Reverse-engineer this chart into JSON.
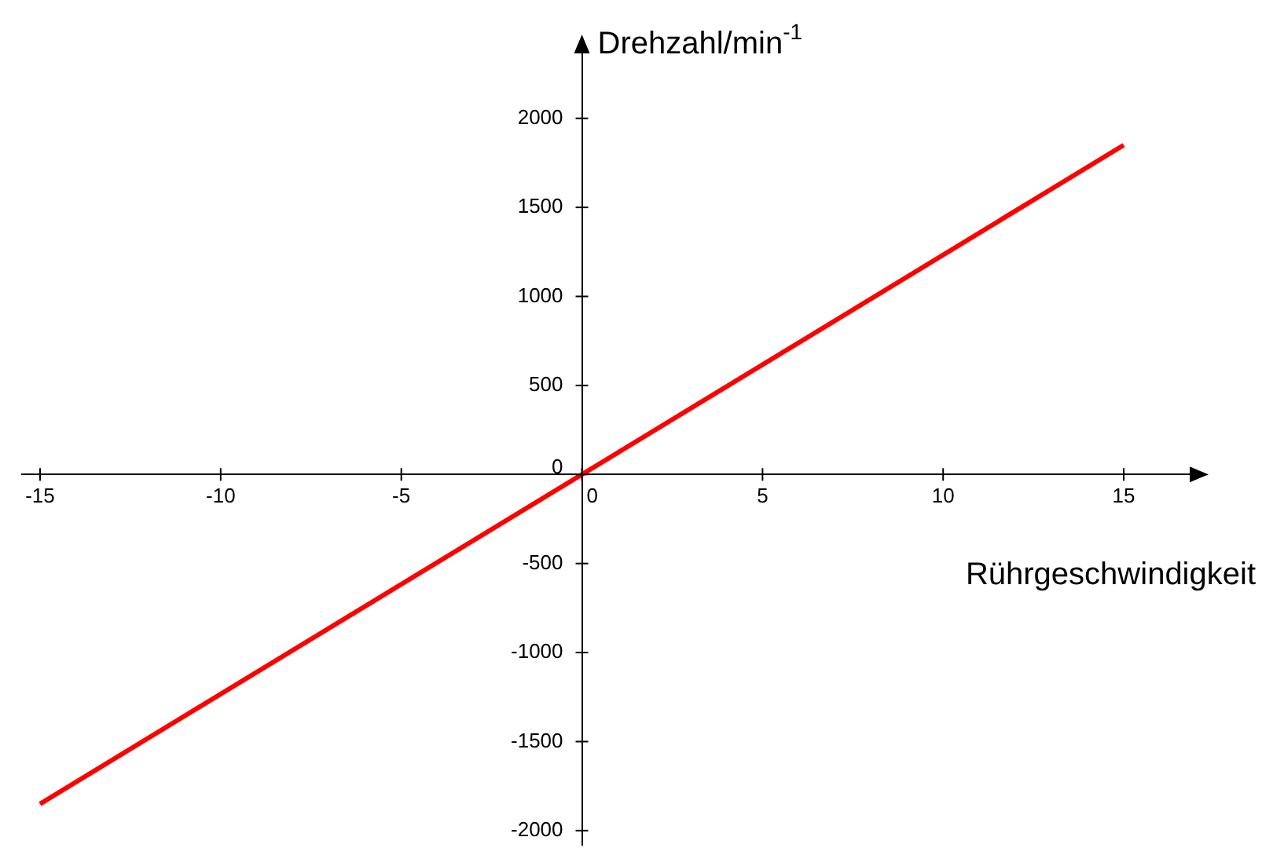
{
  "chart_data": {
    "type": "line",
    "xlabel": "Rührgeschwindigkeit",
    "ylabel": "Drehzahl/min$^{-1}$",
    "x": [
      -15,
      15
    ],
    "series": [
      {
        "color": "#ff0000",
        "values": [
          -1850,
          1850
        ]
      }
    ],
    "xlim": [
      -15.5,
      17
    ],
    "ylim": [
      -2080,
      2400
    ],
    "xticks": [
      -15,
      -10,
      -5,
      0,
      5,
      10,
      15
    ],
    "yticks": [
      -2000,
      -1500,
      -1000,
      -500,
      0,
      500,
      1000,
      1500,
      2000
    ],
    "grid": false,
    "legend": false,
    "marker": "none",
    "line_style": "solid"
  }
}
